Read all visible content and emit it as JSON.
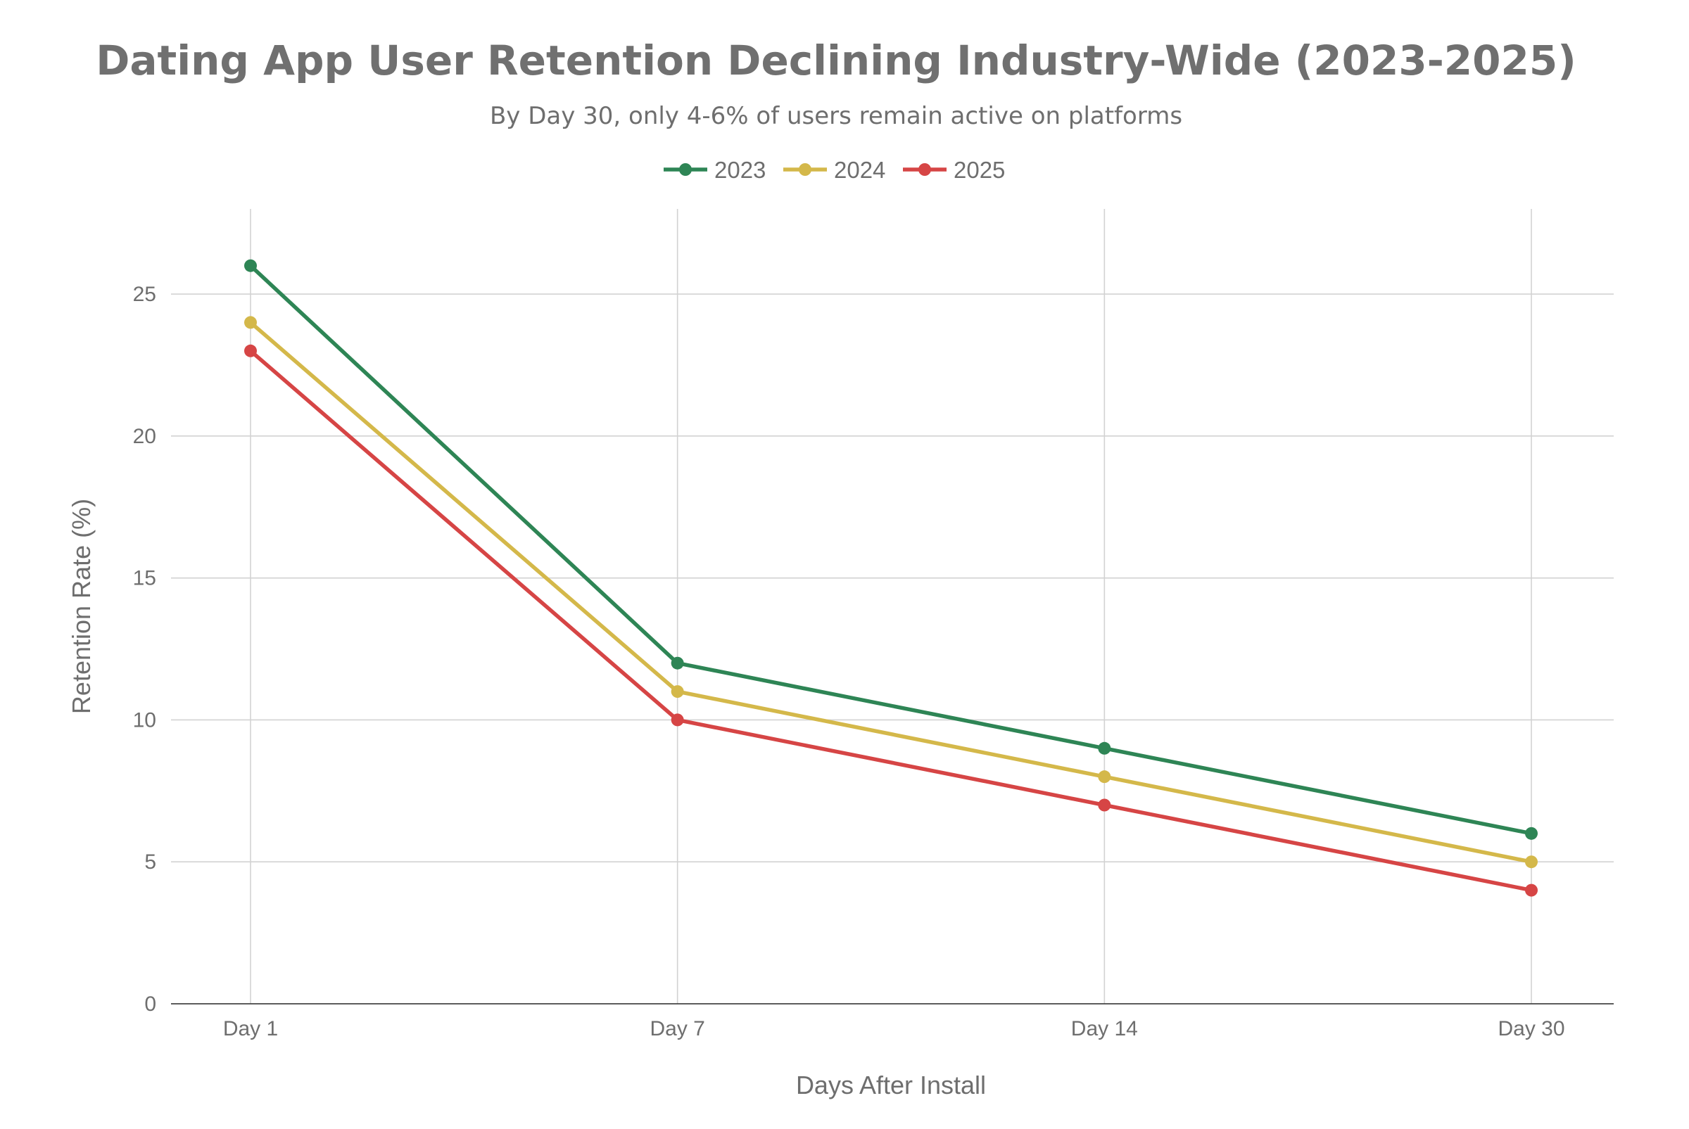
{
  "chart_data": {
    "type": "line",
    "title": "Dating App User Retention Declining Industry-Wide (2023-2025)",
    "subtitle": "By Day 30, only 4-6% of users remain active on platforms",
    "xlabel": "Days After Install",
    "ylabel": "Retention Rate (%)",
    "categories": [
      "Day 1",
      "Day 7",
      "Day 14",
      "Day 30"
    ],
    "ylim": [
      0,
      28
    ],
    "yticks": [
      "0",
      "5",
      "10",
      "15",
      "20",
      "25"
    ],
    "grid": true,
    "legend_position": "top-center",
    "series": [
      {
        "name": "2023",
        "color": "#2e8555",
        "values": [
          26,
          12,
          9,
          6
        ]
      },
      {
        "name": "2024",
        "color": "#d4b84a",
        "values": [
          24,
          11,
          8,
          5
        ]
      },
      {
        "name": "2025",
        "color": "#d64545",
        "values": [
          23,
          10,
          7,
          4
        ]
      }
    ]
  }
}
